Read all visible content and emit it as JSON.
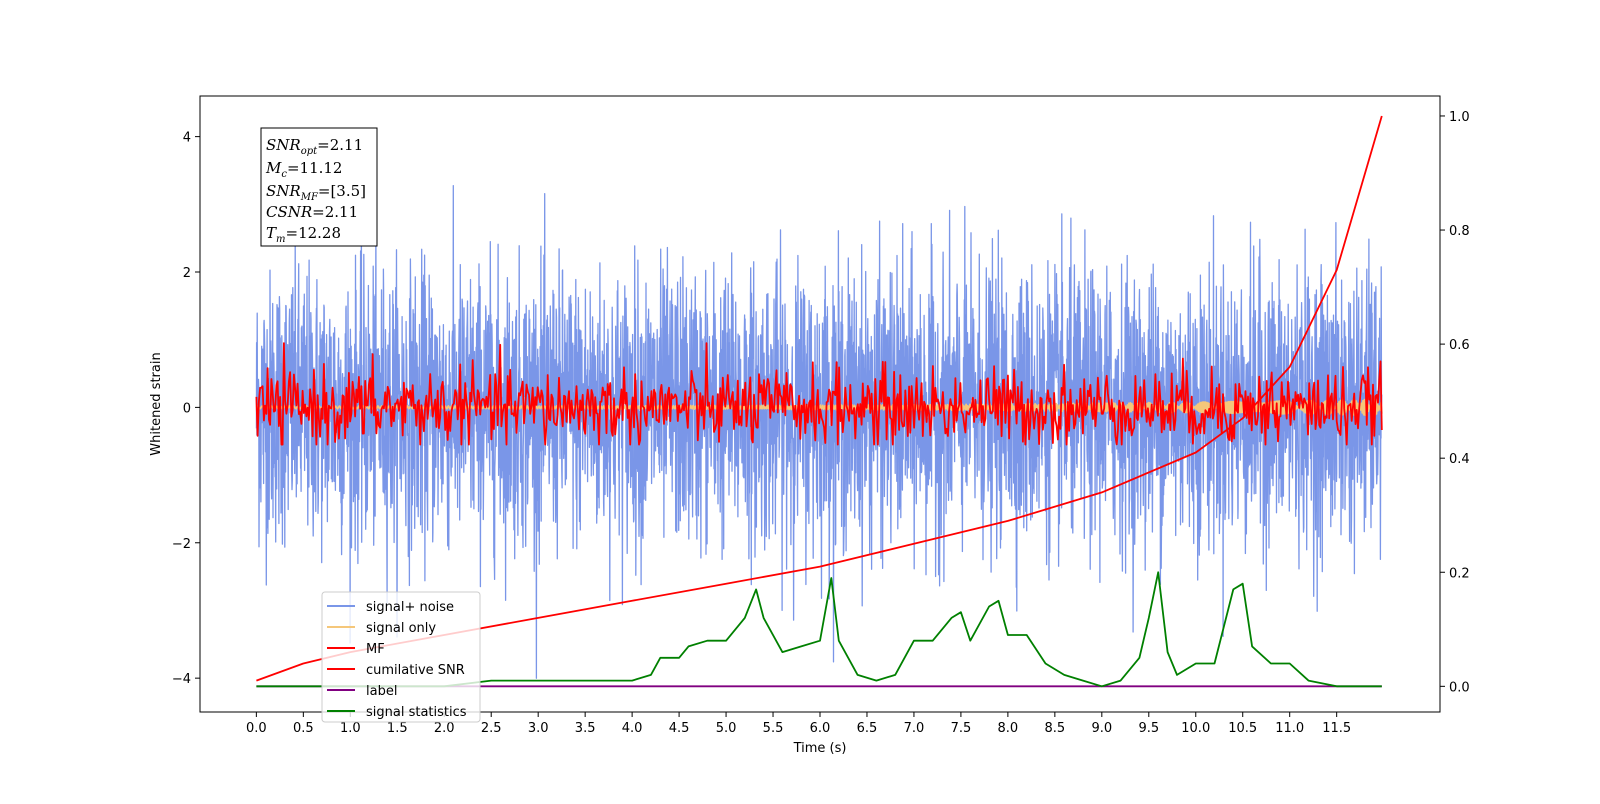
{
  "chart_data": {
    "type": "line",
    "title": "",
    "xlabel": "Time (s)",
    "ylabel": "Whitened strain",
    "xlim": [
      -0.6,
      12.6
    ],
    "ylim": [
      -4.5,
      4.6
    ],
    "y2lim": [
      -0.045,
      1.035
    ],
    "x_ticks": [
      0.0,
      0.5,
      1.0,
      1.5,
      2.0,
      2.5,
      3.0,
      3.5,
      4.0,
      4.5,
      5.0,
      5.5,
      6.0,
      6.5,
      7.0,
      7.5,
      8.0,
      8.5,
      9.0,
      9.5,
      10.0,
      10.5,
      11.0,
      11.5
    ],
    "x_tick_labels": [
      "0.0",
      "0.5",
      "1.0",
      "1.5",
      "2.0",
      "2.5",
      "3.0",
      "3.5",
      "4.0",
      "4.5",
      "5.0",
      "5.5",
      "6.0",
      "6.5",
      "7.0",
      "7.5",
      "8.0",
      "8.5",
      "9.0",
      "9.5",
      "10.0",
      "10.5",
      "11.0",
      "11.5"
    ],
    "y_ticks": [
      -4,
      -2,
      0,
      2,
      4
    ],
    "y_tick_labels": [
      "−4",
      "−2",
      "0",
      "2",
      "4"
    ],
    "y2_ticks": [
      0.0,
      0.2,
      0.4,
      0.6,
      0.8,
      1.0
    ],
    "y2_tick_labels": [
      "0.0",
      "0.2",
      "0.4",
      "0.6",
      "0.8",
      "1.0"
    ],
    "grid": false,
    "legend_position": "lower-left",
    "info_box": {
      "snr_opt": "=2.11",
      "mc": "=11.12",
      "snr_mf": "=[3.5]",
      "csnr": "=2.11",
      "tm": "=12.28"
    },
    "series": [
      {
        "name": "signal+ noise",
        "color": "#7a96e8",
        "axis": "left",
        "style": "noise",
        "x_range": [
          0,
          11.98
        ],
        "mean": 0.0,
        "std": 1.0,
        "y_min": -4.0,
        "y_max": 4.15
      },
      {
        "name": "signal only",
        "color": "#f5c77a",
        "axis": "left",
        "style": "chirp",
        "x_range": [
          0,
          11.98
        ],
        "amplitude_start": 0.02,
        "amplitude_end": 0.12
      },
      {
        "name": "MF",
        "color": "#ff0000",
        "axis": "left",
        "style": "noise",
        "x_range": [
          0,
          11.98
        ],
        "mean": 0.0,
        "std": 0.28,
        "y_min": -0.55,
        "y_max": 0.95
      },
      {
        "name": "cumilative SNR",
        "color": "#ff0000",
        "axis": "right",
        "x": [
          0.0,
          0.5,
          1.0,
          2.0,
          3.0,
          4.0,
          5.0,
          6.0,
          7.0,
          8.0,
          9.0,
          10.0,
          10.5,
          11.0,
          11.5,
          11.98
        ],
        "y": [
          0.01,
          0.04,
          0.06,
          0.09,
          0.12,
          0.15,
          0.18,
          0.21,
          0.25,
          0.29,
          0.34,
          0.41,
          0.47,
          0.56,
          0.73,
          1.0
        ]
      },
      {
        "name": "label",
        "color": "#800080",
        "axis": "right",
        "x": [
          0.0,
          11.98
        ],
        "y": [
          0.0,
          0.0
        ]
      },
      {
        "name": "signal statistics",
        "color": "#008000",
        "axis": "right",
        "x": [
          0.0,
          0.5,
          1.0,
          2.0,
          2.5,
          3.0,
          3.5,
          4.0,
          4.2,
          4.3,
          4.5,
          4.6,
          4.8,
          5.0,
          5.2,
          5.32,
          5.4,
          5.6,
          5.8,
          6.0,
          6.12,
          6.2,
          6.4,
          6.6,
          6.8,
          7.0,
          7.2,
          7.4,
          7.5,
          7.6,
          7.8,
          7.9,
          8.0,
          8.2,
          8.4,
          8.6,
          8.8,
          9.0,
          9.2,
          9.4,
          9.5,
          9.6,
          9.7,
          9.8,
          10.0,
          10.2,
          10.4,
          10.5,
          10.6,
          10.8,
          11.0,
          11.2,
          11.5,
          11.98
        ],
        "y": [
          0.0,
          0.0,
          0.0,
          0.0,
          0.01,
          0.01,
          0.01,
          0.01,
          0.02,
          0.05,
          0.05,
          0.07,
          0.08,
          0.08,
          0.12,
          0.17,
          0.12,
          0.06,
          0.07,
          0.08,
          0.19,
          0.08,
          0.02,
          0.01,
          0.02,
          0.08,
          0.08,
          0.12,
          0.13,
          0.08,
          0.14,
          0.15,
          0.09,
          0.09,
          0.04,
          0.02,
          0.01,
          0.0,
          0.01,
          0.05,
          0.12,
          0.2,
          0.06,
          0.02,
          0.04,
          0.04,
          0.17,
          0.18,
          0.07,
          0.04,
          0.04,
          0.01,
          0.0,
          0.0
        ]
      }
    ]
  }
}
